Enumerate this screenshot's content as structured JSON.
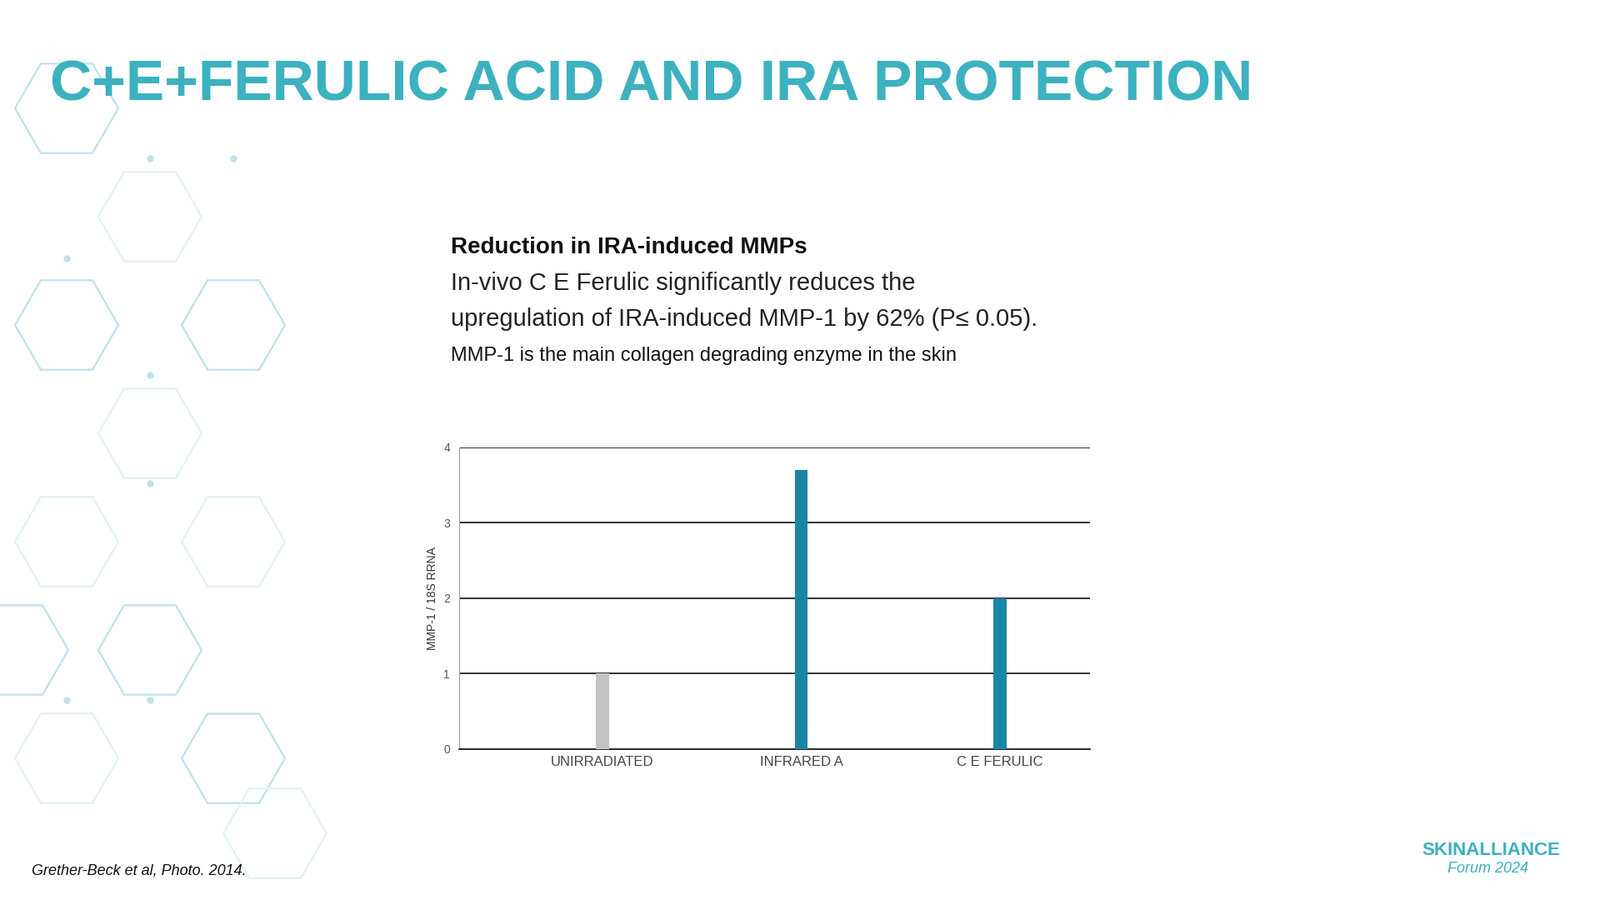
{
  "slide": {
    "title": "C+E+FERULIC ACID AND IRA PROTECTION",
    "heading": "Reduction in IRA-induced MMPs",
    "body": [
      "In-vivo C E Ferulic significantly reduces the",
      "upregulation of IRA-induced MMP-1 by 62% (P≤ 0.05)."
    ],
    "note": "MMP-1 is the main collagen degrading enzyme in the skin",
    "citation": "Grether-Beck et al, Photo. 2014.",
    "logo": "SKINALLIANCE",
    "logo_sub": "Forum 2024"
  },
  "chart_data": {
    "type": "bar",
    "categories": [
      "UNIRRADIATED",
      "INFRARED A",
      "C E FERULIC"
    ],
    "values": [
      1.0,
      3.7,
      2.0
    ],
    "colors": [
      "#c4c4c4",
      "#1a86a6",
      "#1a86a6"
    ],
    "ylabel": "MMP-1 / 18S RRNA",
    "ylim": [
      0,
      4
    ],
    "yticks": [
      0,
      1,
      2,
      3,
      4
    ],
    "grid": true
  }
}
